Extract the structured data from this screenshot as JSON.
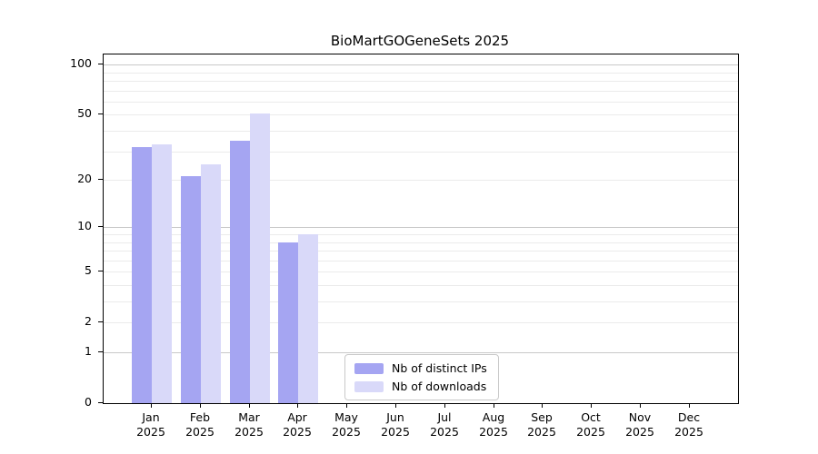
{
  "chart_data": {
    "type": "bar",
    "title": "BioMartGOGeneSets 2025",
    "categories": [
      "Jan",
      "Feb",
      "Mar",
      "Apr",
      "May",
      "Jun",
      "Jul",
      "Aug",
      "Sep",
      "Oct",
      "Nov",
      "Dec"
    ],
    "category_year": "2025",
    "series": [
      {
        "name": "Nb of distinct IPs",
        "color": "#a5a5f2",
        "values": [
          32,
          21,
          35,
          8,
          null,
          null,
          null,
          null,
          null,
          null,
          null,
          null
        ]
      },
      {
        "name": "Nb of downloads",
        "color": "#d9d9f9",
        "values": [
          33,
          25,
          51,
          9,
          null,
          null,
          null,
          null,
          null,
          null,
          null,
          null
        ]
      }
    ],
    "yscale": "log1p",
    "yticks": [
      0,
      1,
      2,
      5,
      10,
      20,
      50,
      100
    ],
    "ylim": [
      0,
      115
    ],
    "grid": {
      "major_values": [
        1,
        10,
        100
      ],
      "minor_values": [
        2,
        3,
        4,
        5,
        6,
        7,
        8,
        9,
        20,
        30,
        40,
        50,
        60,
        70,
        80,
        90
      ],
      "major_color": "#c8c8c8",
      "minor_color": "#ebebeb"
    },
    "legend_position": "lower center inside",
    "xlabel": "",
    "ylabel": ""
  },
  "colors": {
    "axis": "#000000",
    "background": "#ffffff",
    "text": "#000000"
  }
}
